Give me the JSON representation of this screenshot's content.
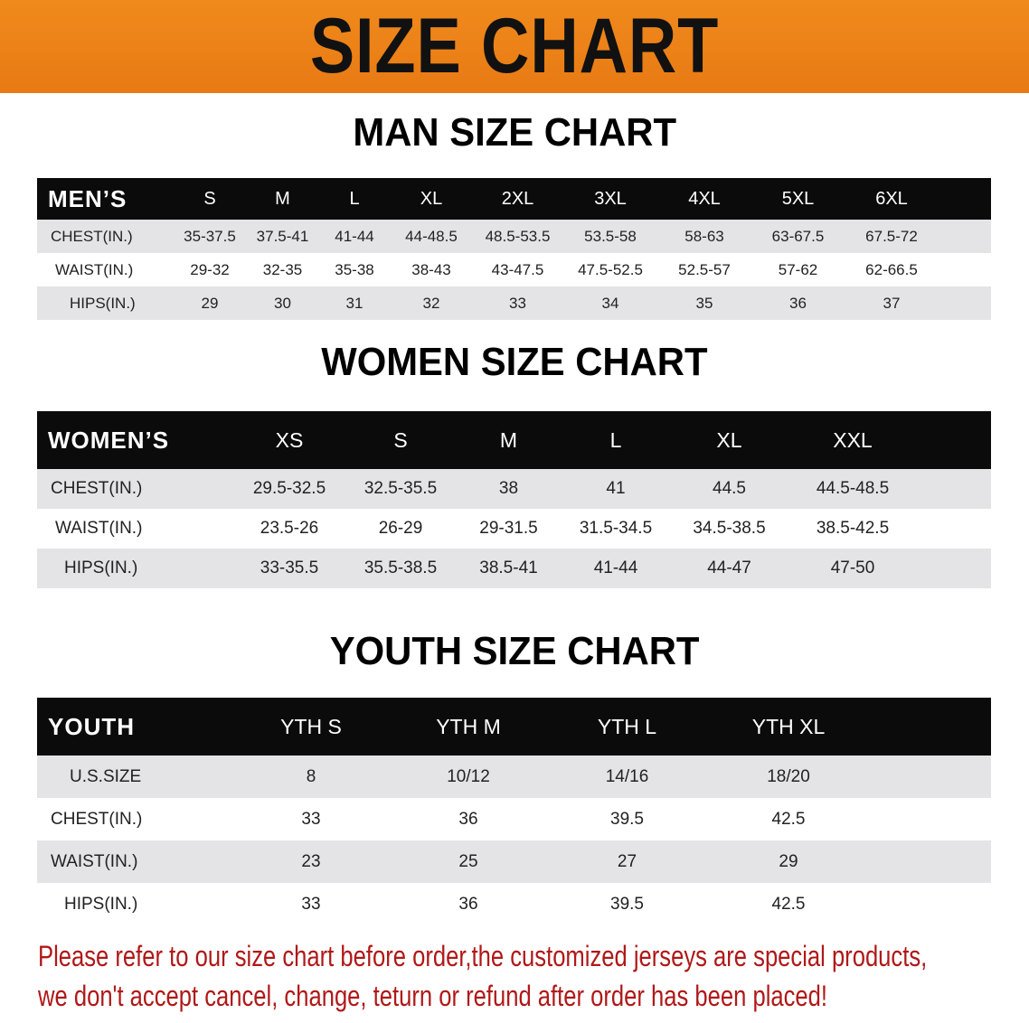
{
  "banner": {
    "title": "SIZE CHART",
    "color": "#ec8219"
  },
  "men": {
    "title": "MAN SIZE CHART",
    "header": "MEN’S",
    "sizes": [
      "S",
      "M",
      "L",
      "XL",
      "2XL",
      "3XL",
      "4XL",
      "5XL",
      "6XL"
    ],
    "rows": [
      {
        "label": "CHEST(IN.)",
        "values": [
          "35-37.5",
          "37.5-41",
          "41-44",
          "44-48.5",
          "48.5-53.5",
          "53.5-58",
          "58-63",
          "63-67.5",
          "67.5-72"
        ]
      },
      {
        "label": "WAIST(IN.)",
        "values": [
          "29-32",
          "32-35",
          "35-38",
          "38-43",
          "43-47.5",
          "47.5-52.5",
          "52.5-57",
          "57-62",
          "62-66.5"
        ]
      },
      {
        "label": "HIPS(IN.)",
        "values": [
          "29",
          "30",
          "31",
          "32",
          "33",
          "34",
          "35",
          "36",
          "37"
        ]
      }
    ]
  },
  "women": {
    "title": "WOMEN SIZE CHART",
    "header": "WOMEN’S",
    "sizes": [
      "XS",
      "S",
      "M",
      "L",
      "XL",
      "XXL"
    ],
    "rows": [
      {
        "label": "CHEST(IN.)",
        "values": [
          "29.5-32.5",
          "32.5-35.5",
          "38",
          "41",
          "44.5",
          "44.5-48.5"
        ]
      },
      {
        "label": "WAIST(IN.)",
        "values": [
          "23.5-26",
          "26-29",
          "29-31.5",
          "31.5-34.5",
          "34.5-38.5",
          "38.5-42.5"
        ]
      },
      {
        "label": "HIPS(IN.)",
        "values": [
          "33-35.5",
          "35.5-38.5",
          "38.5-41",
          "41-44",
          "44-47",
          "47-50"
        ]
      }
    ]
  },
  "youth": {
    "title": "YOUTH SIZE CHART",
    "header": "YOUTH",
    "sizes": [
      "YTH S",
      "YTH M",
      "YTH L",
      "YTH XL"
    ],
    "rows": [
      {
        "label": "U.S.SIZE",
        "values": [
          "8",
          "10/12",
          "14/16",
          "18/20"
        ]
      },
      {
        "label": "CHEST(IN.)",
        "values": [
          "33",
          "36",
          "39.5",
          "42.5"
        ]
      },
      {
        "label": "WAIST(IN.)",
        "values": [
          "23",
          "25",
          "27",
          "29"
        ]
      },
      {
        "label": "HIPS(IN.)",
        "values": [
          "33",
          "36",
          "39.5",
          "42.5"
        ]
      }
    ]
  },
  "notice": {
    "line1": "Please refer to our size chart before order,the customized jerseys are special products,",
    "line2": "we don't accept cancel, change, teturn or refund after order has been placed!",
    "color": "#b01818"
  }
}
